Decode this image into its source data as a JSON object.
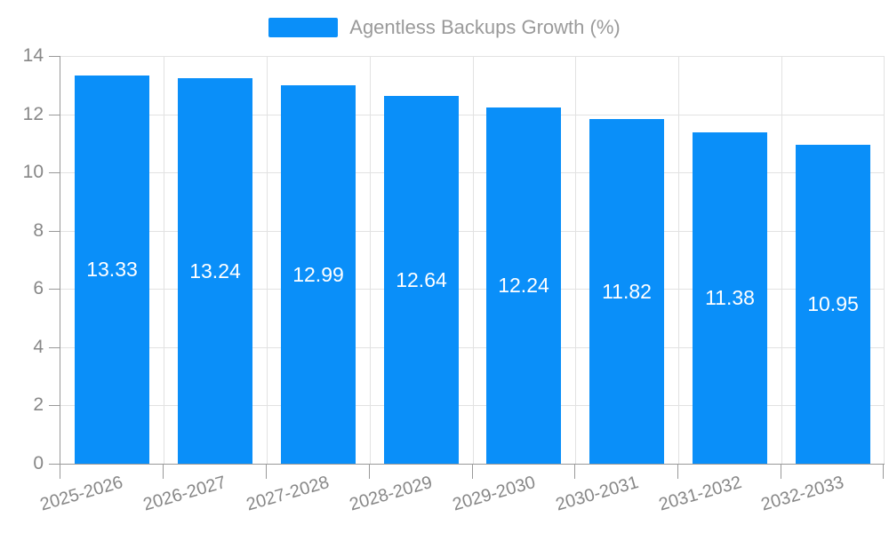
{
  "legend": {
    "label": "Agentless Backups Growth (%)",
    "swatch_color": "#0a8ff9",
    "text_color": "#9a9a9a"
  },
  "chart_data": {
    "type": "bar",
    "title": "",
    "xlabel": "",
    "ylabel": "",
    "categories": [
      "2025-2026",
      "2026-2027",
      "2027-2028",
      "2028-2029",
      "2029-2030",
      "2030-2031",
      "2031-2032",
      "2032-2033"
    ],
    "values": [
      13.33,
      13.24,
      12.99,
      12.64,
      12.24,
      11.82,
      11.38,
      10.95
    ],
    "value_labels": [
      "13.33",
      "13.24",
      "12.99",
      "12.64",
      "12.24",
      "11.82",
      "11.38",
      "10.95"
    ],
    "ylim": [
      0,
      14
    ],
    "yticks": [
      0,
      2,
      4,
      6,
      8,
      10,
      12,
      14
    ],
    "grid": true,
    "legend_position": "top-center",
    "bar_color": "#0a8ff9",
    "value_label_color": "#ffffff",
    "axis_color": "#999999",
    "grid_color": "#e2e2e2",
    "tick_label_color": "#878787"
  }
}
